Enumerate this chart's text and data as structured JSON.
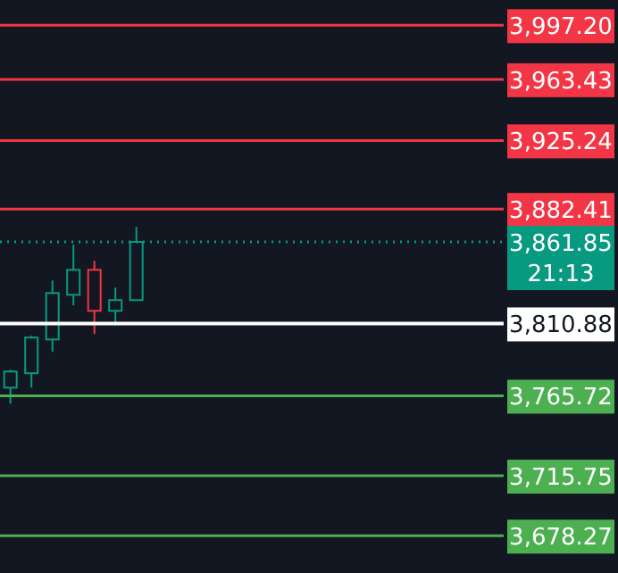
{
  "chart_data": {
    "type": "candlestick",
    "categories": [
      null,
      null,
      null,
      null,
      null,
      null,
      null,
      null,
      null,
      null,
      null,
      null,
      null,
      null,
      null,
      null,
      null,
      null,
      null,
      null,
      null,
      null,
      null,
      null
    ],
    "ohlc": [
      [
        3770.8,
        3782.0,
        3760.8,
        3780.9
      ],
      [
        3779.8,
        3803.2,
        3770.8,
        3802.1
      ],
      [
        3800.9,
        3837.8,
        3793.2,
        3829.9
      ],
      [
        3828.8,
        3860.1,
        3822.1,
        3844.4
      ],
      [
        3844.4,
        3850.0,
        3804.3,
        3818.8
      ],
      [
        3818.8,
        3833.3,
        3809.9,
        3825.5
      ],
      [
        3825.5,
        3871.2,
        3825.5,
        3861.85
      ],
      null,
      null,
      null,
      null,
      null,
      null,
      null,
      null,
      null,
      null,
      null,
      null,
      null,
      null,
      null,
      null,
      null
    ],
    "colors": [
      "#089981",
      "#089981",
      "#089981",
      "#089981",
      "#f23645",
      "#089981",
      "#089981",
      null,
      null,
      null,
      null,
      null,
      null,
      null,
      null,
      null,
      null,
      null,
      null,
      null,
      null,
      null,
      null,
      null
    ],
    "ylim": [
      3655,
      4013
    ],
    "grid": false,
    "ref_lines": [
      {
        "axis": "y",
        "value": 3997.2,
        "label": "3,997.20",
        "color": "#f23645"
      },
      {
        "axis": "y",
        "value": 3963.43,
        "label": "3,963.43",
        "color": "#f23645"
      },
      {
        "axis": "y",
        "value": 3925.24,
        "label": "3,925.24",
        "color": "#f23645"
      },
      {
        "axis": "y",
        "value": 3882.41,
        "label": "3,882.41",
        "color": "#f23645"
      },
      {
        "axis": "y",
        "value": 3861.85,
        "label": "3,861.85",
        "color": "#089981",
        "line_style": "dotted"
      },
      {
        "axis": "y",
        "value": 3810.88,
        "label": "3,810.88",
        "color": "#ffffff"
      },
      {
        "axis": "y",
        "value": 3765.72,
        "label": "3,765.72",
        "color": "#4caf50"
      },
      {
        "axis": "y",
        "value": 3715.75,
        "label": "3,715.75",
        "color": "#4caf50"
      },
      {
        "axis": "y",
        "value": 3678.27,
        "label": "3,678.27",
        "color": "#4caf50"
      }
    ],
    "annotations": [
      "21:13"
    ]
  }
}
